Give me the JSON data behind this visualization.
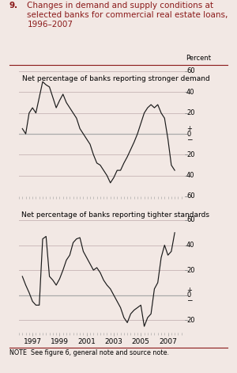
{
  "title_num": "9.",
  "title_text": "Changes in demand and supply conditions at\nselected banks for commercial real estate loans,\n1996–2007",
  "subtitle1": "Net percentage of banks reporting stronger demand",
  "subtitle2": "Net percentage of banks reporting tighter standards",
  "note": "NOTE  See figure 6, general note and source note.",
  "percent_label": "Percent",
  "bg_color": "#f2e8e4",
  "title_color": "#8b1a1a",
  "line_color": "#1a1a1a",
  "zero_line_color": "#aaaaaa",
  "grid_color": "#ccbbbb",
  "demand_x": [
    1996.25,
    1996.5,
    1996.75,
    1997.0,
    1997.25,
    1997.5,
    1997.75,
    1998.0,
    1998.25,
    1998.5,
    1998.75,
    1999.0,
    1999.25,
    1999.5,
    1999.75,
    2000.0,
    2000.25,
    2000.5,
    2000.75,
    2001.0,
    2001.25,
    2001.5,
    2001.75,
    2002.0,
    2002.25,
    2002.5,
    2002.75,
    2003.0,
    2003.25,
    2003.5,
    2003.75,
    2004.0,
    2004.25,
    2004.5,
    2004.75,
    2005.0,
    2005.25,
    2005.5,
    2005.75,
    2006.0,
    2006.25,
    2006.5,
    2006.75,
    2007.0,
    2007.25,
    2007.5
  ],
  "demand_y": [
    5,
    0,
    20,
    25,
    20,
    35,
    50,
    47,
    45,
    35,
    25,
    32,
    38,
    30,
    25,
    20,
    15,
    5,
    0,
    -5,
    -10,
    -20,
    -28,
    -30,
    -35,
    -40,
    -47,
    -42,
    -35,
    -35,
    -28,
    -22,
    -15,
    -8,
    0,
    10,
    20,
    25,
    28,
    25,
    28,
    20,
    15,
    -5,
    -30,
    -35
  ],
  "supply_x": [
    1996.25,
    1996.5,
    1996.75,
    1997.0,
    1997.25,
    1997.5,
    1997.75,
    1998.0,
    1998.25,
    1998.5,
    1998.75,
    1999.0,
    1999.25,
    1999.5,
    1999.75,
    2000.0,
    2000.25,
    2000.5,
    2000.75,
    2001.0,
    2001.25,
    2001.5,
    2001.75,
    2002.0,
    2002.25,
    2002.5,
    2002.75,
    2003.0,
    2003.25,
    2003.5,
    2003.75,
    2004.0,
    2004.25,
    2004.5,
    2004.75,
    2005.0,
    2005.25,
    2005.5,
    2005.75,
    2006.0,
    2006.25,
    2006.5,
    2006.75,
    2007.0,
    2007.25,
    2007.5
  ],
  "supply_y": [
    15,
    8,
    2,
    -5,
    -8,
    -8,
    45,
    47,
    15,
    12,
    8,
    13,
    20,
    28,
    32,
    42,
    45,
    46,
    35,
    30,
    25,
    20,
    22,
    18,
    12,
    8,
    5,
    0,
    -5,
    -10,
    -18,
    -22,
    -15,
    -12,
    -10,
    -8,
    -25,
    -18,
    -15,
    5,
    10,
    30,
    40,
    32,
    35,
    50
  ],
  "ylim1": [
    -60,
    60
  ],
  "ylim2": [
    -30,
    60
  ],
  "yticks1": [
    -60,
    -40,
    -20,
    0,
    20,
    40,
    60
  ],
  "yticks2": [
    -20,
    0,
    20,
    40,
    60
  ],
  "xmin": 1996.0,
  "xmax": 2008.25,
  "xtick_years": [
    1997,
    1999,
    2001,
    2003,
    2005,
    2007
  ]
}
